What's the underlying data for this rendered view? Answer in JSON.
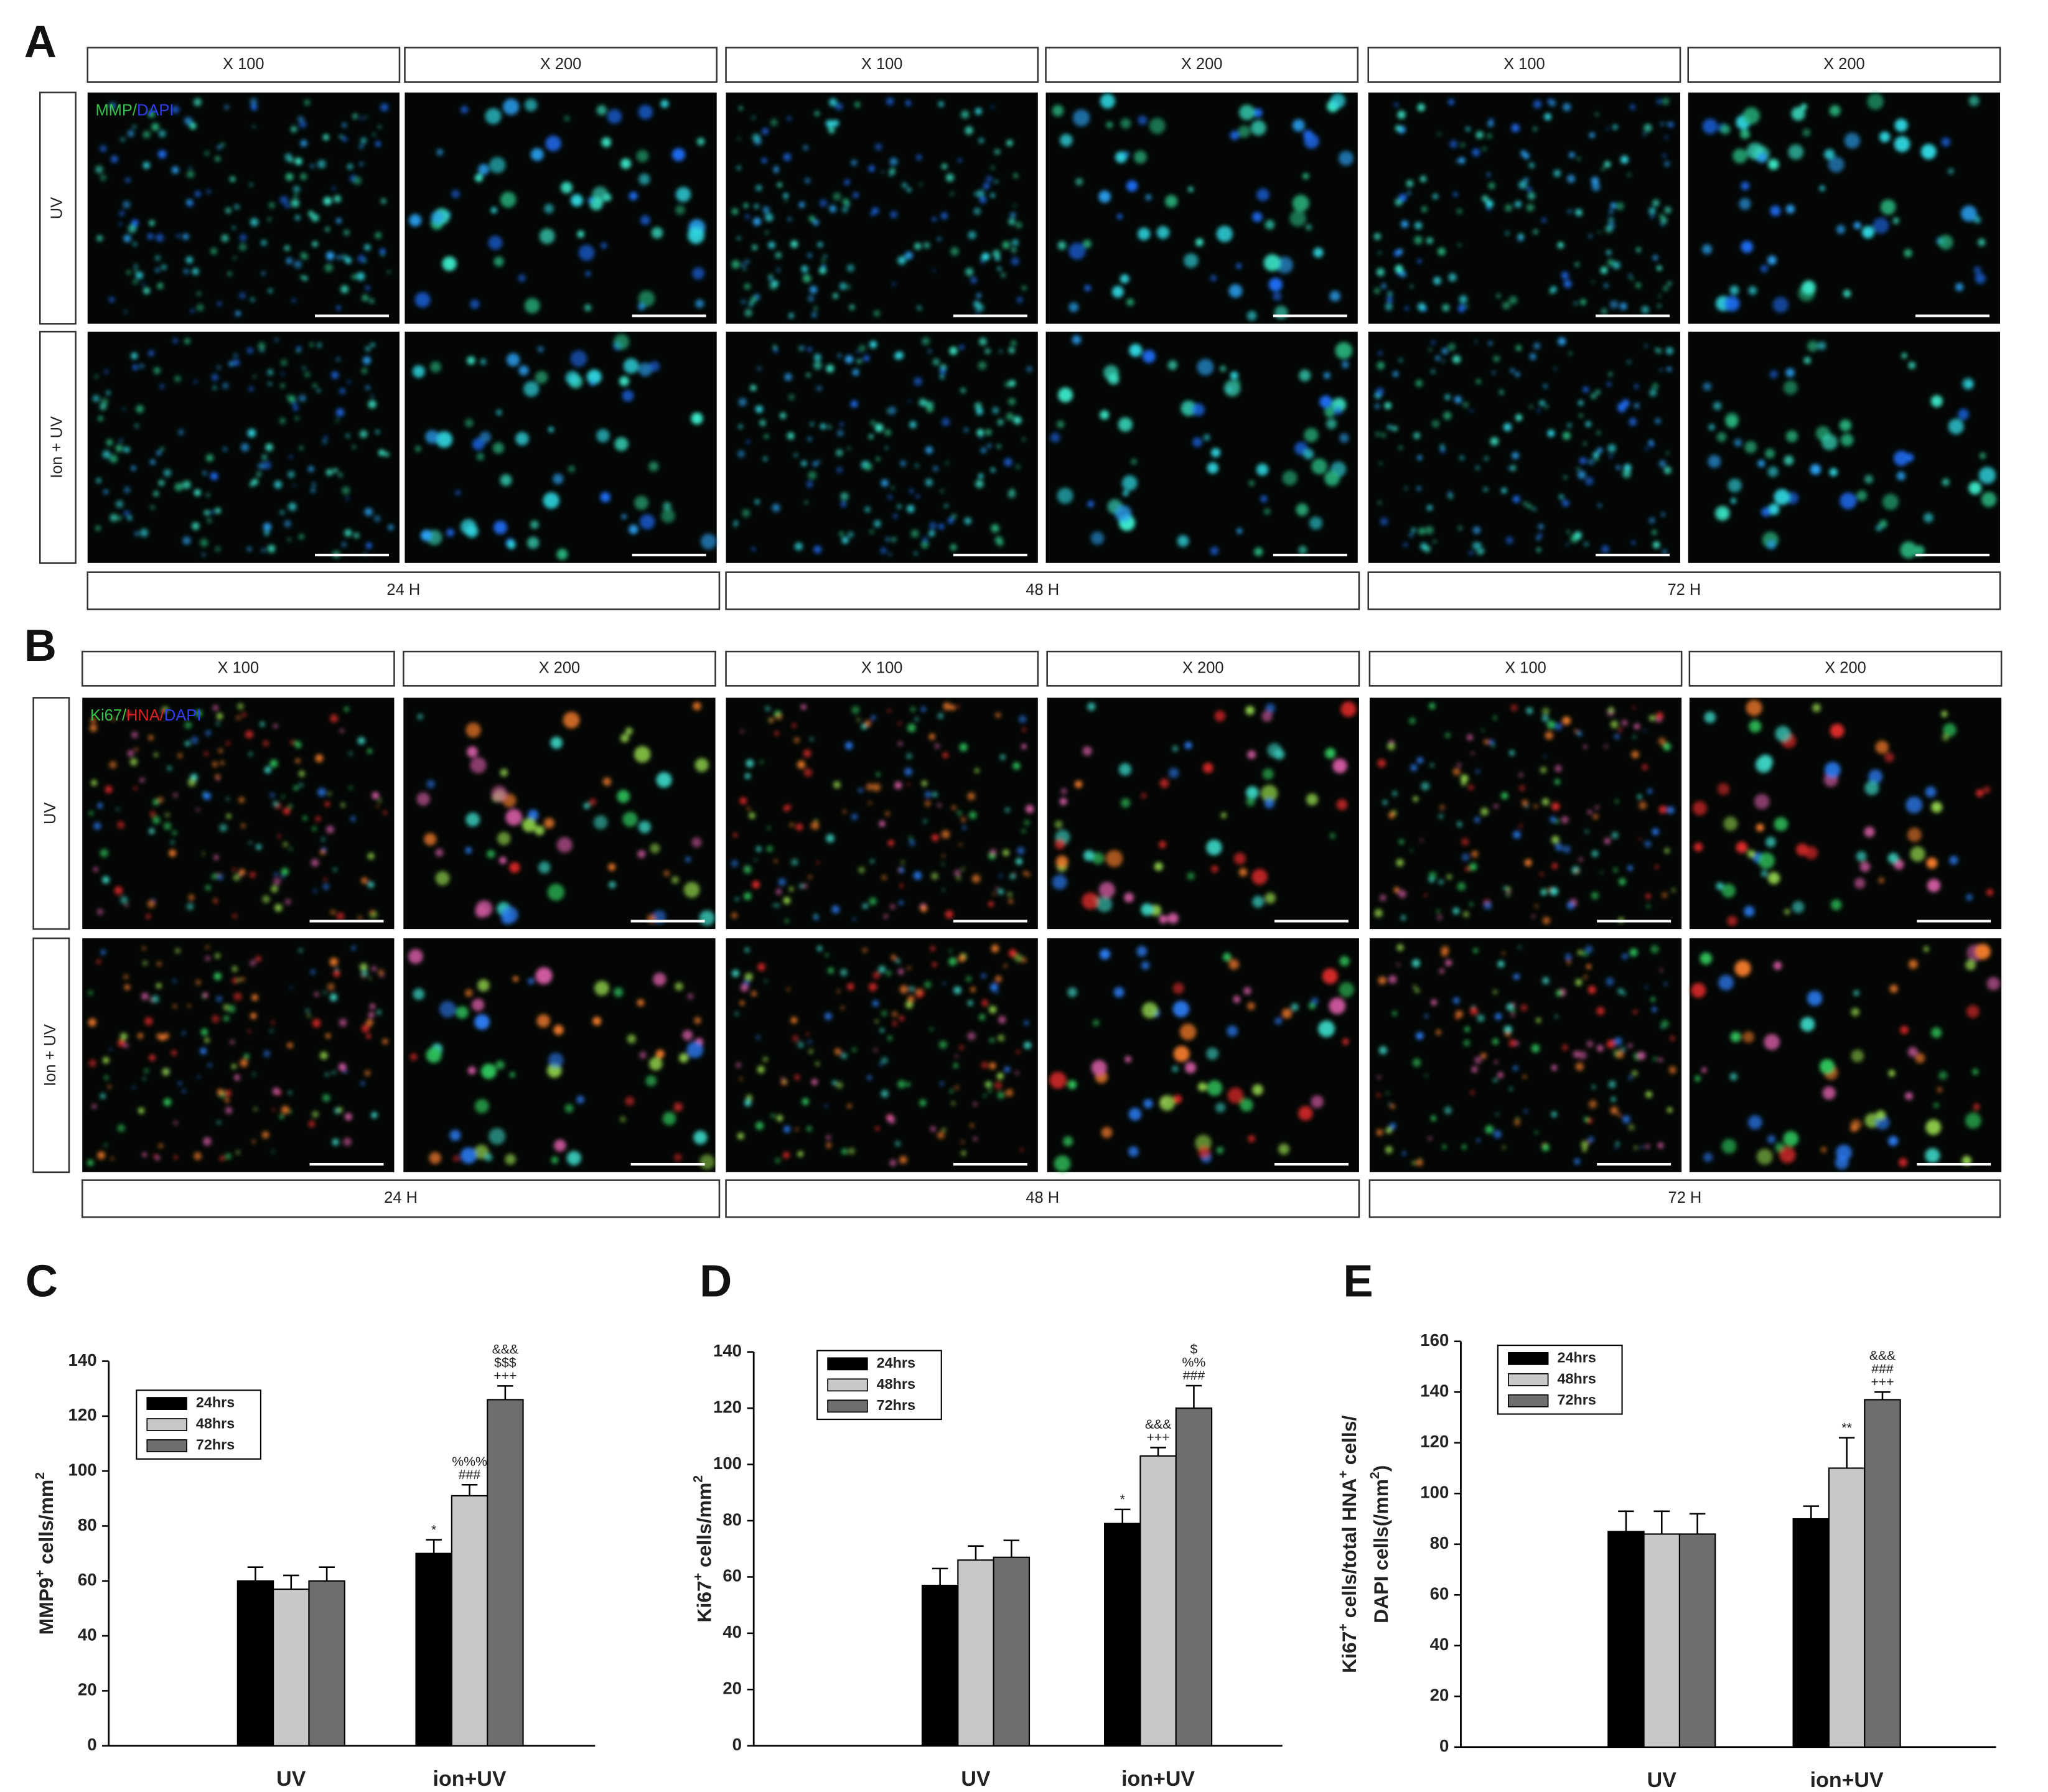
{
  "panel_a": {
    "label": "A",
    "stain": [
      "MMP/",
      "DAPI"
    ],
    "stain_colors": [
      "#39c24a",
      "#2f3cf0"
    ],
    "magnifications": [
      "X 100",
      "X 200",
      "X 100",
      "X 200",
      "X 100",
      "X 200"
    ],
    "conditions": [
      "UV",
      "Ion + UV"
    ],
    "times": [
      "24 H",
      "48 H",
      "72 H"
    ]
  },
  "panel_b": {
    "label": "B",
    "stain": [
      "Ki67/",
      "HNA/",
      "DAPI"
    ],
    "stain_colors": [
      "#39c24a",
      "#e02020",
      "#2f3cf0"
    ],
    "magnifications": [
      "X 100",
      "X 200",
      "X 100",
      "X 200",
      "X 100",
      "X 200"
    ],
    "conditions": [
      "UV",
      "Ion + UV"
    ],
    "times": [
      "24 H",
      "48 H",
      "72 H"
    ]
  },
  "chart_data": [
    {
      "type": "bar",
      "label": "C",
      "ylabel": [
        [
          "MMP9",
          "+",
          " cells/mm",
          "2"
        ]
      ],
      "categories": [
        "UV",
        "ion+UV"
      ],
      "ylim": [
        0,
        140
      ],
      "yticks": [
        0,
        20,
        40,
        60,
        80,
        100,
        120,
        140
      ],
      "legend": "upper left",
      "series": [
        {
          "name": "24hrs",
          "color": "#000000",
          "values": [
            60,
            70
          ],
          "errors": [
            5,
            5
          ],
          "annotations": [
            [],
            [
              "*"
            ]
          ]
        },
        {
          "name": "48hrs",
          "color": "#c8c8c8",
          "values": [
            57,
            91
          ],
          "errors": [
            5,
            4
          ],
          "annotations": [
            [],
            [
              "%%%",
              "###"
            ]
          ]
        },
        {
          "name": "72hrs",
          "color": "#6e6e6e",
          "values": [
            60,
            126
          ],
          "errors": [
            5,
            5
          ],
          "annotations": [
            [],
            [
              "&&&",
              "$$$",
              "+++"
            ]
          ]
        }
      ]
    },
    {
      "type": "bar",
      "label": "D",
      "ylabel": [
        [
          "Ki67",
          "+",
          " cells/mm",
          "2"
        ]
      ],
      "categories": [
        "UV",
        "ion+UV"
      ],
      "ylim": [
        0,
        140
      ],
      "yticks": [
        0,
        20,
        40,
        60,
        80,
        100,
        120,
        140
      ],
      "legend": "upper left",
      "series": [
        {
          "name": "24hrs",
          "color": "#000000",
          "values": [
            57,
            79
          ],
          "errors": [
            6,
            5
          ],
          "annotations": [
            [],
            [
              "*"
            ]
          ]
        },
        {
          "name": "48hrs",
          "color": "#c8c8c8",
          "values": [
            66,
            103
          ],
          "errors": [
            5,
            3
          ],
          "annotations": [
            [],
            [
              "&&&",
              "+++"
            ]
          ]
        },
        {
          "name": "72hrs",
          "color": "#6e6e6e",
          "values": [
            67,
            120
          ],
          "errors": [
            6,
            8
          ],
          "annotations": [
            [],
            [
              "$",
              "%%",
              "###"
            ]
          ]
        }
      ]
    },
    {
      "type": "bar",
      "label": "E",
      "ylabel": [
        [
          "Ki67",
          "+",
          " cells/total HNA",
          "+",
          " cells/"
        ],
        [
          "DAPI cells(/mm",
          "2",
          ")"
        ]
      ],
      "categories": [
        "UV",
        "ion+UV"
      ],
      "ylim": [
        0,
        160
      ],
      "yticks": [
        0,
        20,
        40,
        60,
        80,
        100,
        120,
        140,
        160
      ],
      "legend": "upper left",
      "series": [
        {
          "name": "24hrs",
          "color": "#000000",
          "values": [
            85,
            90
          ],
          "errors": [
            8,
            5
          ],
          "annotations": [
            [],
            []
          ]
        },
        {
          "name": "48hrs",
          "color": "#c8c8c8",
          "values": [
            84,
            110
          ],
          "errors": [
            9,
            12
          ],
          "annotations": [
            [],
            [
              "**"
            ]
          ]
        },
        {
          "name": "72hrs",
          "color": "#6e6e6e",
          "values": [
            84,
            137
          ],
          "errors": [
            8,
            3
          ],
          "annotations": [
            [],
            [
              "&&&",
              "###",
              "+++"
            ]
          ]
        }
      ]
    }
  ]
}
